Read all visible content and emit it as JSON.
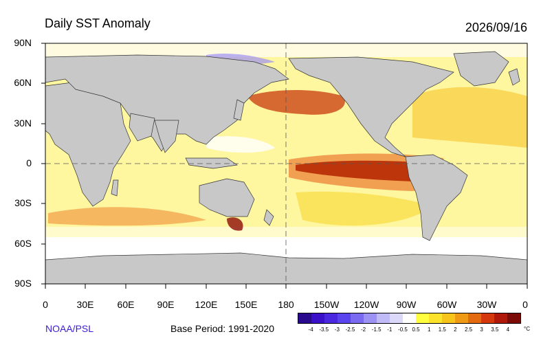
{
  "title": "Daily SST Anomaly",
  "date": "2026/09/16",
  "credit": "NOAA/PSL",
  "base_period": "Base Period: 1991-2020",
  "y_ticks": [
    "90N",
    "60N",
    "30N",
    "0",
    "30S",
    "60S",
    "90S"
  ],
  "x_ticks": [
    "0",
    "30E",
    "60E",
    "90E",
    "120E",
    "150E",
    "180",
    "150W",
    "120W",
    "90W",
    "60W",
    "30W",
    "0"
  ],
  "colorbar": {
    "unit": "°C",
    "ticks": [
      "-4",
      "-3.5",
      "-3",
      "-2.5",
      "-2",
      "-1.5",
      "-1",
      "-0.5",
      "0.5",
      "1",
      "1.5",
      "2",
      "2.5",
      "3",
      "3.5",
      "4"
    ],
    "colors": [
      "#2a0a8c",
      "#3a10c8",
      "#4a28e0",
      "#5a44ee",
      "#7a6af2",
      "#9c92f4",
      "#c0baf6",
      "#dcd8fa",
      "#ffffff",
      "#ffff40",
      "#fde22c",
      "#f7c41c",
      "#ef9a14",
      "#e46a10",
      "#d4380c",
      "#b0180a",
      "#7c0a06"
    ]
  },
  "colors": {
    "land": "#c8c8c8",
    "ocean_base": "#fff7a0"
  }
}
